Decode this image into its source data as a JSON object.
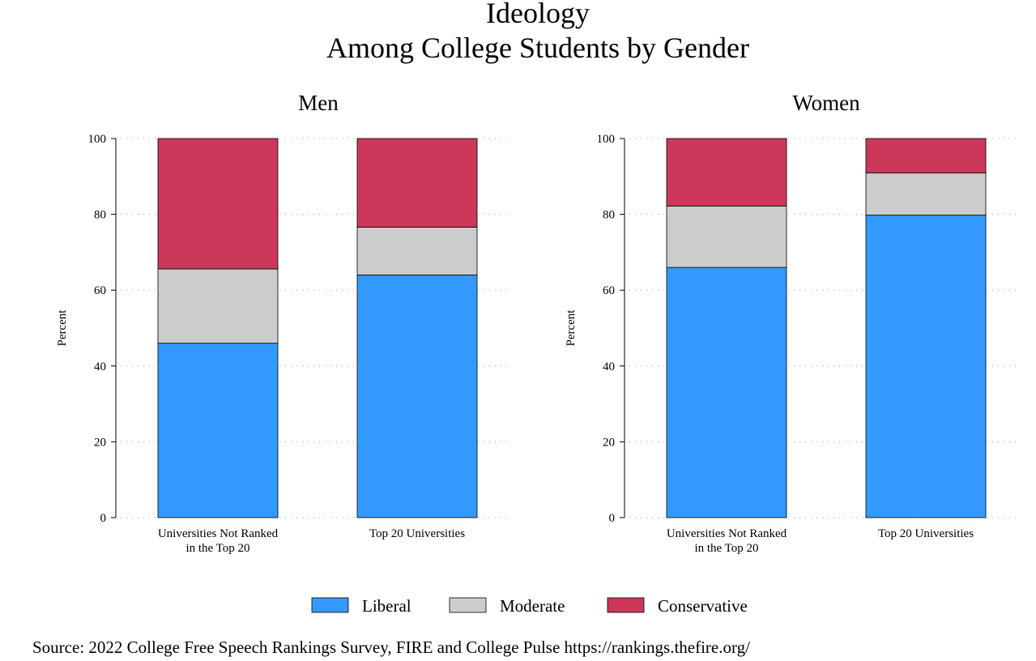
{
  "title_line1": "Ideology",
  "title_line2": "Among College Students by Gender",
  "source": "Source: 2022 College Free Speech Rankings Survey, FIRE and College Pulse https://rankings.thefire.org/",
  "colors": {
    "liberal": "#3399ff",
    "moderate": "#cccccc",
    "conservative": "#cc3859",
    "grid": "#999999",
    "axis": "#000000"
  },
  "legend": [
    {
      "label": "Liberal",
      "color": "#3399ff"
    },
    {
      "label": "Moderate",
      "color": "#cccccc"
    },
    {
      "label": "Conservative",
      "color": "#cc3859"
    }
  ],
  "chart_data": [
    {
      "type": "bar",
      "stacked": true,
      "title": "Men",
      "ylabel": "Percent",
      "xlabel": "",
      "ylim": [
        0,
        100
      ],
      "yticks": [
        0,
        20,
        40,
        60,
        80,
        100
      ],
      "grid": true,
      "categories": [
        [
          "Universities Not Ranked",
          "in the Top 20"
        ],
        [
          "Top 20 Universities"
        ]
      ],
      "series": [
        {
          "name": "Liberal",
          "values": [
            46,
            64
          ]
        },
        {
          "name": "Moderate",
          "values": [
            19.6,
            12.6
          ]
        },
        {
          "name": "Conservative",
          "values": [
            34.4,
            23.4
          ]
        }
      ]
    },
    {
      "type": "bar",
      "stacked": true,
      "title": "Women",
      "ylabel": "Percent",
      "xlabel": "",
      "ylim": [
        0,
        100
      ],
      "yticks": [
        0,
        20,
        40,
        60,
        80,
        100
      ],
      "grid": true,
      "categories": [
        [
          "Universities Not Ranked",
          "in the Top 20"
        ],
        [
          "Top 20 Universities"
        ]
      ],
      "series": [
        {
          "name": "Liberal",
          "values": [
            66,
            79.8
          ]
        },
        {
          "name": "Moderate",
          "values": [
            16.2,
            11.1
          ]
        },
        {
          "name": "Conservative",
          "values": [
            17.8,
            9.1
          ]
        }
      ]
    }
  ]
}
